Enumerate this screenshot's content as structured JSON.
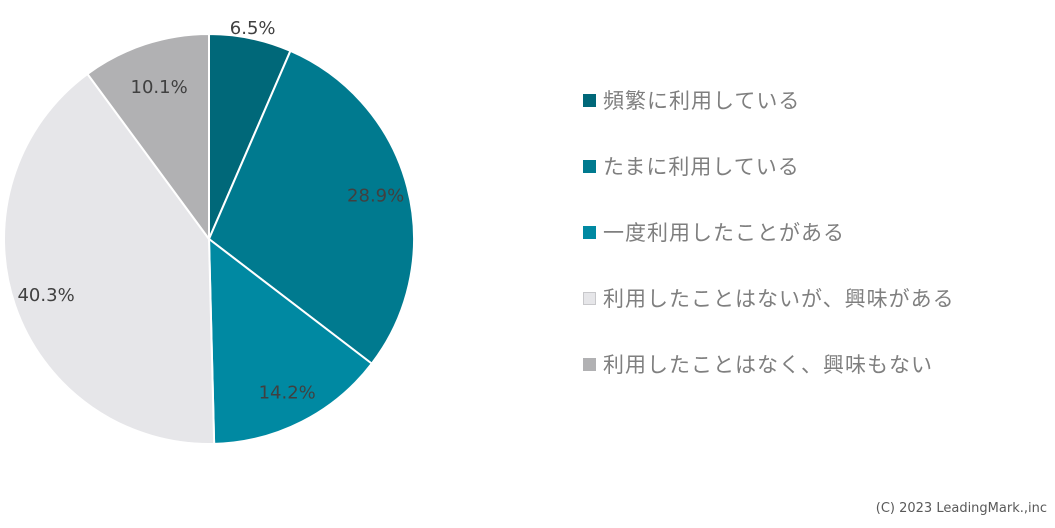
{
  "chart_data": {
    "type": "pie",
    "title": "",
    "start_angle_deg": 0,
    "direction": "clockwise",
    "slices": [
      {
        "label": "頻繁に利用している",
        "value": 6.5,
        "value_label": "6.5%",
        "color": "#006879",
        "label_color": "#404040"
      },
      {
        "label": "たまに利用している",
        "value": 28.9,
        "value_label": "28.9%",
        "color": "#007a8f",
        "label_color": "#404040"
      },
      {
        "label": "一度利用したことがある",
        "value": 14.2,
        "value_label": "14.2%",
        "color": "#0089a2",
        "label_color": "#404040"
      },
      {
        "label": "利用したことはないが、興味がある",
        "value": 40.3,
        "value_label": "40.3%",
        "color": "#e6e6e9",
        "label_color": "#404040"
      },
      {
        "label": "利用したことはなく、興味もない",
        "value": 10.1,
        "value_label": "10.1%",
        "color": "#b1b1b3",
        "label_color": "#404040"
      }
    ],
    "legend_position": "right",
    "slice_border_color": "#ffffff"
  },
  "footer": {
    "copyright": "(C) 2023 LeadingMark.,inc"
  }
}
